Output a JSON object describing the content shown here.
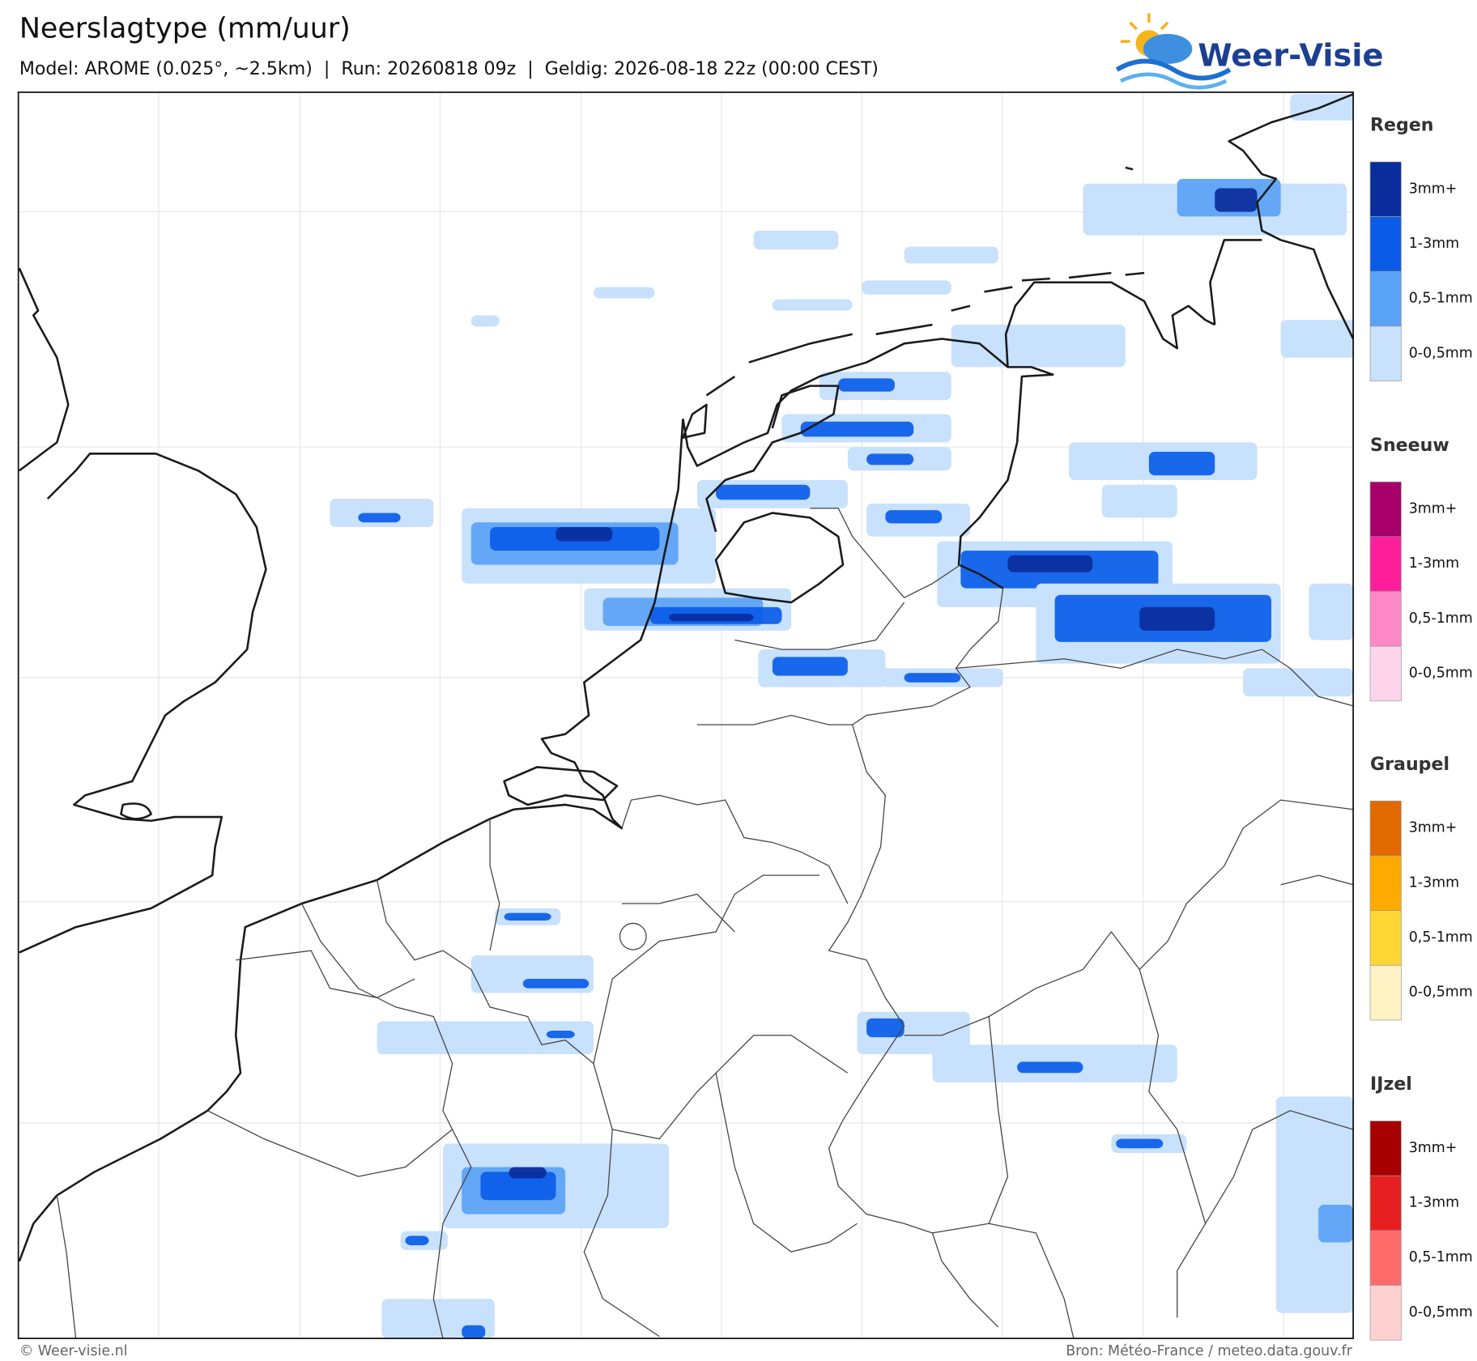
{
  "header": {
    "title": "Neerslagtype (mm/uur)",
    "subtitle": "Model: AROME (0.025°, ~2.5km)  |  Run: 20260818 09z  |  Geldig: 2026-08-18 22z (00:00 CEST)"
  },
  "logo": {
    "text": "Weer-Visie"
  },
  "legend": [
    {
      "title": "Regen",
      "labels": [
        "3mm+",
        "1-3mm",
        "0,5-1mm",
        "0-0,5mm"
      ],
      "colors": [
        "#0a2d9c",
        "#0a5ce8",
        "#5aa2f5",
        "#c8e1fc"
      ]
    },
    {
      "title": "Sneeuw",
      "labels": [
        "3mm+",
        "1-3mm",
        "0,5-1mm",
        "0-0,5mm"
      ],
      "colors": [
        "#a8006b",
        "#ff1f9b",
        "#ff88c8",
        "#ffd5ec"
      ]
    },
    {
      "title": "Graupel",
      "labels": [
        "3mm+",
        "1-3mm",
        "0,5-1mm",
        "0-0,5mm"
      ],
      "colors": [
        "#e06a00",
        "#ffaa00",
        "#ffd634",
        "#fff3c6"
      ]
    },
    {
      "title": "IJzel",
      "labels": [
        "3mm+",
        "1-3mm",
        "0,5-1mm",
        "0-0,5mm"
      ],
      "colors": [
        "#a80000",
        "#e62020",
        "#ff6b6b",
        "#ffd0d0"
      ]
    }
  ],
  "footer": {
    "copyright": "© Weer-visie.nl",
    "source": "Bron: Météo-France / meteo.data.gouv.fr"
  }
}
